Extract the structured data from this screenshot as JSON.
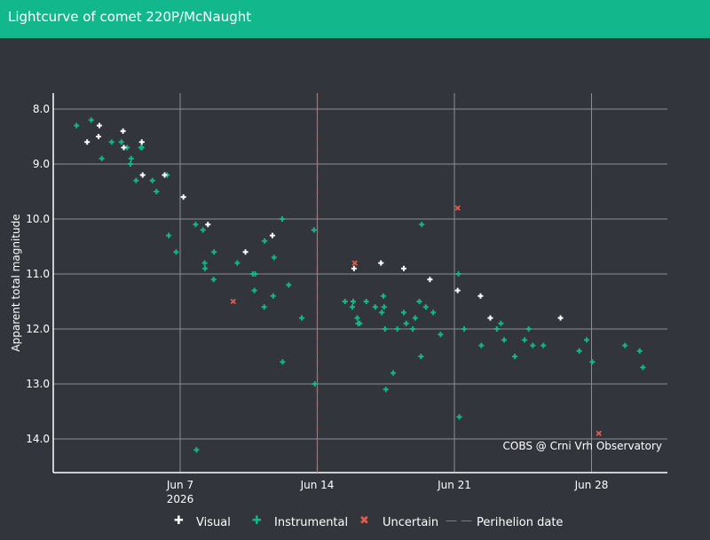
{
  "header": {
    "title": "Lightcurve of comet 220P/McNaught",
    "bg_color": "#12b78c"
  },
  "chart_data": {
    "type": "scatter",
    "ylabel": "Apparent total magnitude",
    "xlabel": "",
    "x_start_date": "2026-06-07",
    "xlim": [
      "2026-06-01",
      "2026-07-01"
    ],
    "ylim": [
      14.6,
      7.8
    ],
    "y_reversed": true,
    "yticks": [
      "8.0",
      "9.0",
      "10.0",
      "11.0",
      "12.0",
      "13.0",
      "14.0"
    ],
    "xticks": [
      {
        "label": "Jun 7",
        "sublabel": "2026",
        "date": "2026-06-07"
      },
      {
        "label": "Jun 14",
        "sublabel": "",
        "date": "2026-06-14"
      },
      {
        "label": "Jun 21",
        "sublabel": "",
        "date": "2026-06-21"
      },
      {
        "label": "Jun 28",
        "sublabel": "",
        "date": "2026-06-28"
      }
    ],
    "grid": true,
    "legend_position": "bottom",
    "annotation": "COBS @ Crni Vrh Observatory",
    "perihelion_date": "2026-06-14",
    "series": [
      {
        "name": "Visual",
        "color": "#ffffff",
        "marker": "cross",
        "points": [
          [
            "2026-06-02 06:00",
            8.6
          ],
          [
            "2026-06-02 20:00",
            8.5
          ],
          [
            "2026-06-02 21:00",
            8.3
          ],
          [
            "2026-06-04 02:00",
            8.4
          ],
          [
            "2026-06-04 03:00",
            8.7
          ],
          [
            "2026-06-05 01:00",
            8.6
          ],
          [
            "2026-06-05 02:00",
            9.2
          ],
          [
            "2026-06-06 05:00",
            9.2
          ],
          [
            "2026-06-07 04:00",
            9.6
          ],
          [
            "2026-06-08 10:00",
            10.1
          ],
          [
            "2026-06-10 08:00",
            10.6
          ],
          [
            "2026-06-11 17:00",
            10.3
          ],
          [
            "2026-06-15 21:00",
            10.9
          ],
          [
            "2026-06-17 06:00",
            10.8
          ],
          [
            "2026-06-18 10:00",
            10.9
          ],
          [
            "2026-06-19 18:00",
            11.1
          ],
          [
            "2026-06-21 04:00",
            11.3
          ],
          [
            "2026-06-22 08:00",
            11.4
          ],
          [
            "2026-06-22 20:00",
            11.8
          ],
          [
            "2026-06-26 10:00",
            11.8
          ]
        ]
      },
      {
        "name": "Instrumental",
        "color": "#12b78c",
        "marker": "cross",
        "points": [
          [
            "2026-06-01 17:00",
            8.3
          ],
          [
            "2026-06-02 11:00",
            8.2
          ],
          [
            "2026-06-03 00:00",
            8.9
          ],
          [
            "2026-06-03 12:00",
            8.6
          ],
          [
            "2026-06-04 00:00",
            8.6
          ],
          [
            "2026-06-04 07:00",
            8.7
          ],
          [
            "2026-06-04 11:00",
            9.0
          ],
          [
            "2026-06-04 12:00",
            8.9
          ],
          [
            "2026-06-04 18:00",
            9.3
          ],
          [
            "2026-06-05 00:00",
            8.7
          ],
          [
            "2026-06-05 01:00",
            8.7
          ],
          [
            "2026-06-05 14:00",
            9.3
          ],
          [
            "2026-06-05 19:00",
            9.5
          ],
          [
            "2026-06-06 08:00",
            9.2
          ],
          [
            "2026-06-06 10:00",
            10.3
          ],
          [
            "2026-06-06 19:00",
            10.6
          ],
          [
            "2026-06-07 19:00",
            10.1
          ],
          [
            "2026-06-07 20:00",
            14.2
          ],
          [
            "2026-06-08 04:00",
            10.2
          ],
          [
            "2026-06-08 06:00",
            10.8
          ],
          [
            "2026-06-08 06:30",
            10.9
          ],
          [
            "2026-06-08 17:00",
            11.1
          ],
          [
            "2026-06-08 17:30",
            10.6
          ],
          [
            "2026-06-09 22:00",
            10.8
          ],
          [
            "2026-06-10 17:00",
            11.0
          ],
          [
            "2026-06-10 19:00",
            11.3
          ],
          [
            "2026-06-10 20:00",
            11.0
          ],
          [
            "2026-06-11 07:00",
            11.6
          ],
          [
            "2026-06-11 07:30",
            10.4
          ],
          [
            "2026-06-11 18:00",
            11.4
          ],
          [
            "2026-06-11 19:00",
            10.7
          ],
          [
            "2026-06-12 05:00",
            10.0
          ],
          [
            "2026-06-12 05:30",
            12.6
          ],
          [
            "2026-06-12 13:00",
            11.2
          ],
          [
            "2026-06-13 05:00",
            11.8
          ],
          [
            "2026-06-13 20:00",
            10.2
          ],
          [
            "2026-06-13 21:00",
            13.0
          ],
          [
            "2026-06-15 10:00",
            11.5
          ],
          [
            "2026-06-15 19:00",
            11.6
          ],
          [
            "2026-06-15 20:00",
            11.5
          ],
          [
            "2026-06-16 01:00",
            11.8
          ],
          [
            "2026-06-16 02:00",
            11.9
          ],
          [
            "2026-06-16 04:00",
            11.9
          ],
          [
            "2026-06-16 12:00",
            11.5
          ],
          [
            "2026-06-16 23:00",
            11.6
          ],
          [
            "2026-06-17 07:00",
            11.7
          ],
          [
            "2026-06-17 09:00",
            11.4
          ],
          [
            "2026-06-17 10:00",
            11.6
          ],
          [
            "2026-06-17 11:00",
            12.0
          ],
          [
            "2026-06-17 12:00",
            13.1
          ],
          [
            "2026-06-17 21:00",
            12.8
          ],
          [
            "2026-06-18 02:00",
            12.0
          ],
          [
            "2026-06-18 10:00",
            11.7
          ],
          [
            "2026-06-18 13:00",
            11.9
          ],
          [
            "2026-06-18 21:00",
            12.0
          ],
          [
            "2026-06-19 00:00",
            11.8
          ],
          [
            "2026-06-19 05:00",
            11.5
          ],
          [
            "2026-06-19 07:00",
            12.5
          ],
          [
            "2026-06-19 08:00",
            10.1
          ],
          [
            "2026-06-19 13:00",
            11.6
          ],
          [
            "2026-06-19 22:00",
            11.7
          ],
          [
            "2026-06-20 07:00",
            12.1
          ],
          [
            "2026-06-21 05:00",
            11.0
          ],
          [
            "2026-06-21 06:00",
            13.6
          ],
          [
            "2026-06-21 12:00",
            12.0
          ],
          [
            "2026-06-22 09:00",
            12.3
          ],
          [
            "2026-06-23 04:00",
            12.0
          ],
          [
            "2026-06-23 09:00",
            11.9
          ],
          [
            "2026-06-23 13:00",
            12.2
          ],
          [
            "2026-06-24 02:00",
            12.5
          ],
          [
            "2026-06-24 14:00",
            12.2
          ],
          [
            "2026-06-24 19:00",
            12.0
          ],
          [
            "2026-06-25 00:00",
            12.3
          ],
          [
            "2026-06-25 13:00",
            12.3
          ],
          [
            "2026-06-27 09:00",
            12.4
          ],
          [
            "2026-06-27 18:00",
            12.2
          ],
          [
            "2026-06-28 01:00",
            12.6
          ],
          [
            "2026-06-29 17:00",
            12.3
          ],
          [
            "2026-06-30 11:00",
            12.4
          ],
          [
            "2026-06-30 15:00",
            12.7
          ]
        ]
      },
      {
        "name": "Uncertain",
        "color": "#e05d4a",
        "marker": "x",
        "points": [
          [
            "2026-06-09 17:00",
            11.5
          ],
          [
            "2026-06-15 22:00",
            10.8
          ],
          [
            "2026-06-21 04:00",
            9.8
          ],
          [
            "2026-06-28 09:00",
            13.9
          ]
        ]
      }
    ],
    "legend": [
      {
        "label": "Visual",
        "glyph": "✚",
        "color": "#ffffff"
      },
      {
        "label": "Instrumental",
        "glyph": "✚",
        "color": "#12b78c"
      },
      {
        "label": "Uncertain",
        "glyph": "✖",
        "color": "#e05d4a"
      },
      {
        "label": "Perihelion date",
        "glyph": "— —",
        "color": "#e05d4a"
      }
    ]
  }
}
